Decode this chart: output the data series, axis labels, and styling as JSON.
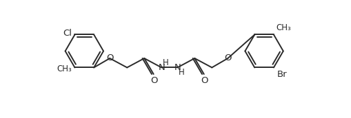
{
  "bg_color": "#ffffff",
  "line_color": "#2a2a2a",
  "line_width": 1.4,
  "font_size_large": 9.5,
  "font_size_small": 8.5,
  "figsize": [
    5.1,
    1.72
  ],
  "dpi": 100,
  "xlim": [
    0,
    10.5
  ],
  "ylim": [
    -2.2,
    2.2
  ]
}
